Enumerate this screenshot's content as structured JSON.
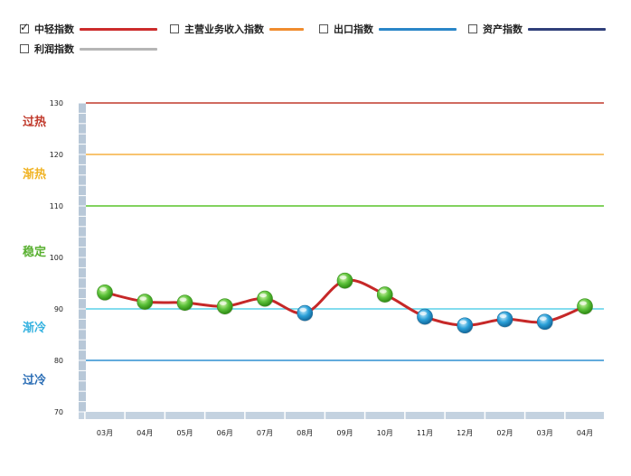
{
  "legend": [
    {
      "label": "中轻指数",
      "checked": true,
      "color": "#cc2b2b"
    },
    {
      "label": "主营业务收入指数",
      "checked": false,
      "color": "#f08c2e"
    },
    {
      "label": "出口指数",
      "checked": false,
      "color": "#2a86c8"
    },
    {
      "label": "资产指数",
      "checked": false,
      "color": "#2f3f7a"
    },
    {
      "label": "利润指数",
      "checked": false,
      "color": "#b5b5b5"
    }
  ],
  "chart_data": {
    "type": "line",
    "categories": [
      "03月",
      "04月",
      "05月",
      "06月",
      "07月",
      "08月",
      "09月",
      "10月",
      "11月",
      "12月",
      "02月",
      "03月",
      "04月"
    ],
    "series": [
      {
        "name": "中轻指数",
        "values": [
          93.2,
          91.4,
          91.2,
          90.5,
          92.0,
          89.2,
          95.5,
          92.8,
          88.5,
          86.8,
          88.0,
          87.5,
          90.5
        ]
      }
    ],
    "ylim": [
      70,
      130
    ],
    "yticks": [
      "130",
      "120",
      "110",
      "100",
      "90",
      "80",
      "70"
    ],
    "thresholds": [
      {
        "value": 130,
        "color": "#c0392b"
      },
      {
        "value": 120,
        "color": "#f5b041"
      },
      {
        "value": 110,
        "color": "#58c42a"
      },
      {
        "value": 90,
        "color": "#5ad0e8"
      },
      {
        "value": 80,
        "color": "#2f8fd0"
      }
    ],
    "zones": [
      {
        "label": "过热",
        "color": "#c0392b"
      },
      {
        "label": "渐热",
        "color": "#f0b323"
      },
      {
        "label": "稳定",
        "color": "#58b030"
      },
      {
        "label": "渐冷",
        "color": "#35b2e0"
      },
      {
        "label": "过冷",
        "color": "#2a6db5"
      }
    ],
    "marker_colors": {
      "warm": "#5cc23a",
      "cool": "#2aa0d8"
    },
    "line_color": "#c62828"
  }
}
